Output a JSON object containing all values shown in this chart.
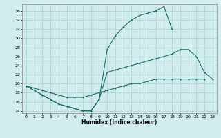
{
  "xlabel": "Humidex (Indice chaleur)",
  "bg_color": "#d0ecec",
  "grid_color": "#aacece",
  "line_color": "#1a6b6b",
  "xlim": [
    -0.5,
    23.5
  ],
  "ylim": [
    13.5,
    37.5
  ],
  "xticks": [
    0,
    1,
    2,
    3,
    4,
    5,
    6,
    7,
    8,
    9,
    10,
    11,
    12,
    13,
    14,
    15,
    16,
    17,
    18,
    19,
    20,
    21,
    22,
    23
  ],
  "yticks": [
    14,
    16,
    18,
    20,
    22,
    24,
    26,
    28,
    30,
    32,
    34,
    36
  ],
  "line1": [
    [
      0,
      19.5
    ],
    [
      1,
      18.5
    ],
    [
      2,
      17.5
    ],
    [
      3,
      16.5
    ],
    [
      4,
      15.5
    ],
    [
      5,
      15.0
    ],
    [
      6,
      14.5
    ],
    [
      7,
      14.0
    ],
    [
      8,
      14.0
    ],
    [
      9,
      16.5
    ],
    [
      10,
      27.5
    ],
    [
      11,
      30.5
    ],
    [
      12,
      32.5
    ],
    [
      13,
      34.0
    ],
    [
      14,
      35.0
    ],
    [
      15,
      35.5
    ],
    [
      16,
      36.0
    ],
    [
      17,
      37.0
    ],
    [
      18,
      32.0
    ]
  ],
  "line2": [
    [
      0,
      19.5
    ],
    [
      1,
      18.5
    ],
    [
      2,
      17.5
    ],
    [
      3,
      16.5
    ],
    [
      4,
      15.5
    ],
    [
      5,
      15.0
    ],
    [
      6,
      14.5
    ],
    [
      7,
      14.0
    ],
    [
      8,
      14.0
    ],
    [
      9,
      16.5
    ],
    [
      10,
      22.5
    ],
    [
      11,
      23.0
    ],
    [
      12,
      23.5
    ],
    [
      13,
      24.0
    ],
    [
      14,
      24.5
    ],
    [
      15,
      25.0
    ],
    [
      16,
      25.5
    ],
    [
      17,
      26.0
    ],
    [
      18,
      26.5
    ],
    [
      19,
      27.5
    ],
    [
      20,
      27.5
    ],
    [
      21,
      26.0
    ],
    [
      22,
      22.5
    ],
    [
      23,
      21.0
    ]
  ],
  "line3": [
    [
      0,
      19.5
    ],
    [
      1,
      19.0
    ],
    [
      2,
      18.5
    ],
    [
      3,
      18.0
    ],
    [
      4,
      17.5
    ],
    [
      5,
      17.0
    ],
    [
      6,
      17.0
    ],
    [
      7,
      17.0
    ],
    [
      8,
      17.5
    ],
    [
      9,
      18.0
    ],
    [
      10,
      18.5
    ],
    [
      11,
      19.0
    ],
    [
      12,
      19.5
    ],
    [
      13,
      20.0
    ],
    [
      14,
      20.0
    ],
    [
      15,
      20.5
    ],
    [
      16,
      21.0
    ],
    [
      17,
      21.0
    ],
    [
      18,
      21.0
    ],
    [
      19,
      21.0
    ],
    [
      20,
      21.0
    ],
    [
      21,
      21.0
    ],
    [
      22,
      21.0
    ]
  ]
}
